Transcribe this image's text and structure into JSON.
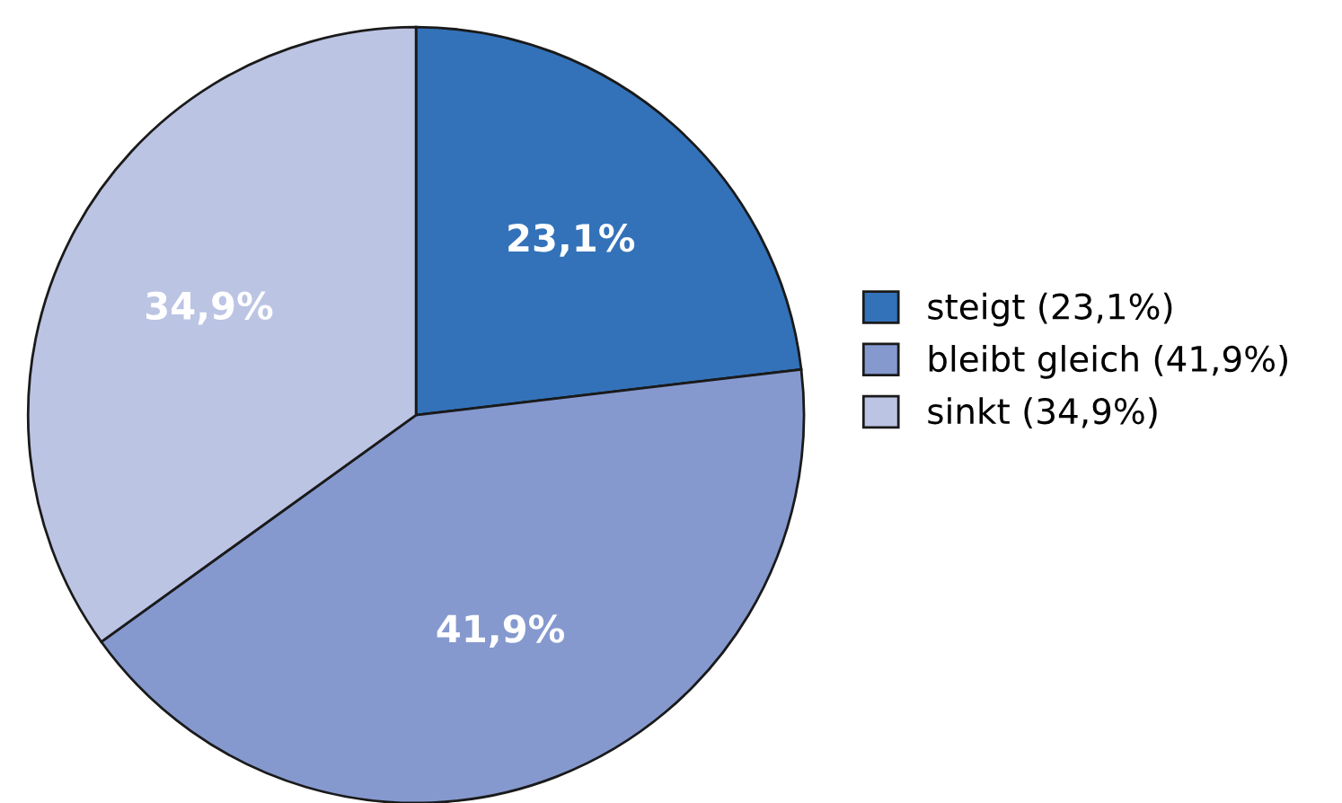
{
  "chart_data": {
    "type": "pie",
    "categories": [
      "steigt (23,1%)",
      "bleibt gleich (41,9%)",
      "sinkt (34,9%)"
    ],
    "values": [
      23.1,
      41.9,
      34.9
    ],
    "value_labels": [
      "23,1%",
      "41,9%",
      "34,9%"
    ],
    "colors": [
      "#3372b9",
      "#8599cf",
      "#bcc4e4"
    ],
    "legend": "right"
  }
}
